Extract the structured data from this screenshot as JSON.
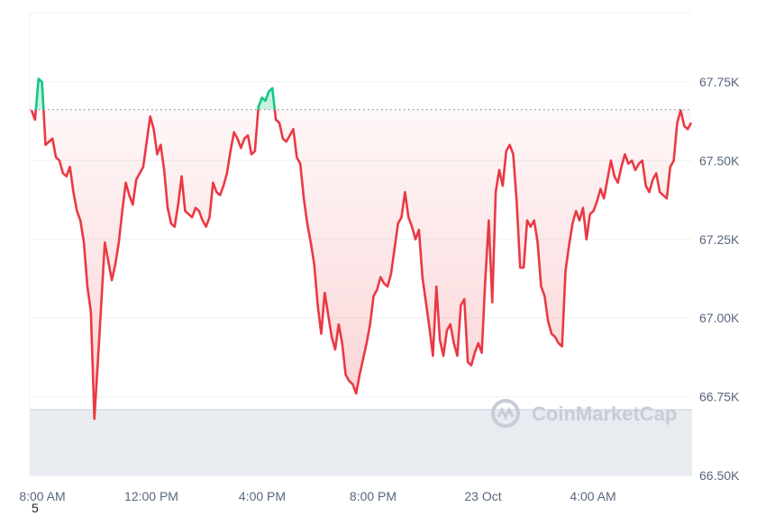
{
  "watermark": "CoinMarketCap",
  "footnote": "5",
  "colors": {
    "down": "#ea3943",
    "up": "#16c784",
    "grid": "#eff2f5",
    "volume": "#e8ebf0",
    "reference": "#808a9d"
  },
  "chart_data": {
    "type": "line",
    "series": [
      {
        "values": [
          67660,
          67630,
          67760,
          67750,
          67550,
          67560,
          67570,
          67510,
          67500,
          67460,
          67450,
          67480,
          67400,
          67340,
          67310,
          67240,
          67100,
          67020,
          66680,
          66860,
          67050,
          67240,
          67180,
          67120,
          67170,
          67240,
          67340,
          67430,
          67390,
          67360,
          67440,
          67460,
          67480,
          67560,
          67640,
          67600,
          67520,
          67550,
          67470,
          67350,
          67300,
          67290,
          67360,
          67450,
          67340,
          67330,
          67320,
          67350,
          67340,
          67310,
          67290,
          67320,
          67430,
          67400,
          67390,
          67420,
          67460,
          67530,
          67590,
          67570,
          67540,
          67570,
          67580,
          67520,
          67530,
          67670,
          67700,
          67690,
          67720,
          67730,
          67630,
          67620,
          67570,
          67560,
          67580,
          67600,
          67510,
          67490,
          67380,
          67300,
          67240,
          67170,
          67040,
          66950,
          67080,
          67010,
          66940,
          66900,
          66980,
          66920,
          66820,
          66800,
          66790,
          66760,
          66820,
          66870,
          66920,
          66980,
          67070,
          67090,
          67130,
          67110,
          67100,
          67140,
          67220,
          67300,
          67320,
          67400,
          67320,
          67290,
          67250,
          67280,
          67130,
          67050,
          66970,
          66880,
          67100,
          66930,
          66880,
          66960,
          66980,
          66920,
          66880,
          67040,
          67060,
          66860,
          66850,
          66890,
          66920,
          66890,
          67120,
          67310,
          67050,
          67400,
          67470,
          67420,
          67530,
          67550,
          67520,
          67370,
          67160,
          67160,
          67310,
          67290,
          67310,
          67240,
          67100,
          67070,
          66990,
          66950,
          66940,
          66920,
          66910,
          67150,
          67230,
          67300,
          67340,
          67310,
          67350,
          67250,
          67330,
          67340,
          67370,
          67410,
          67380,
          67440,
          67500,
          67450,
          67430,
          67480,
          67520,
          67490,
          67500,
          67470,
          67490,
          67500,
          67420,
          67400,
          67440,
          67460,
          67400,
          67390,
          67380,
          67480,
          67500,
          67620,
          67660,
          67610,
          67600,
          67620
        ],
        "ref": 67662
      }
    ],
    "x_range": [
      "2024-10-22T07:30",
      "2024-10-23T08:00"
    ],
    "x_ticks": [
      "8:00 AM",
      "12:00 PM",
      "4:00 PM",
      "8:00 PM",
      "23 Oct",
      "4:00 AM"
    ],
    "y_ticks": [
      "67.75K",
      "67.50K",
      "67.25K",
      "67.00K",
      "66.75K",
      "66.50K"
    ],
    "y_tick_values": [
      67750,
      67500,
      67250,
      67000,
      66750,
      66500
    ],
    "ylim": [
      66500,
      67970
    ],
    "grid": true,
    "reference_line": "dotted",
    "volume_band": true
  }
}
